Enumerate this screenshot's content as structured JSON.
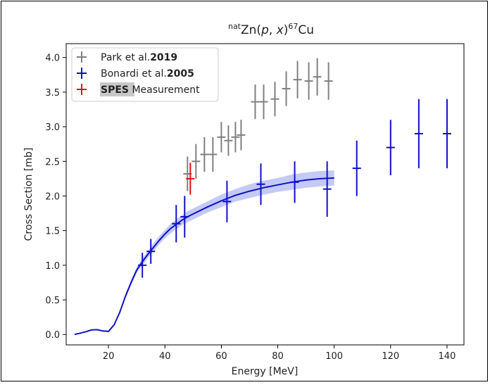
{
  "chart_data": {
    "type": "scatter",
    "title_parts": {
      "sup1": "nat",
      "main": "Zn(",
      "p": "p",
      "comma": ", ",
      "x": "x",
      "close": ")",
      "sup2": "67",
      "tail": "Cu"
    },
    "xlabel": "Energy [MeV]",
    "ylabel": "Cross Section [mb]",
    "xlim": [
      5,
      146
    ],
    "ylim": [
      -0.15,
      4.2
    ],
    "xticks": [
      20,
      40,
      60,
      80,
      100,
      120,
      140
    ],
    "yticks": [
      0.0,
      0.5,
      1.0,
      1.5,
      2.0,
      2.5,
      3.0,
      3.5,
      4.0
    ],
    "ytick_labels": [
      "0.0",
      "0.5",
      "1.0",
      "1.5",
      "2.0",
      "2.5",
      "3.0",
      "3.5",
      "4.0"
    ],
    "grid": false,
    "legend_placement": "top-left",
    "legend": [
      {
        "name": "Park et al.",
        "bold": "2019",
        "highlight": false,
        "color": "#808080"
      },
      {
        "name": "Bonardi et al.",
        "bold": "2005",
        "highlight": false,
        "color": "#1010c8"
      },
      {
        "name": " Measurement",
        "bold": "SPES",
        "highlight": true,
        "color": "#e01010"
      }
    ],
    "series": [
      {
        "name": "Park et al. 2019",
        "color": "#808080",
        "points": [
          {
            "x": 48.0,
            "y": 2.32,
            "err": 0.25
          },
          {
            "x": 51.0,
            "y": 2.5,
            "err": 0.25
          },
          {
            "x": 54.0,
            "y": 2.6,
            "err": 0.25
          },
          {
            "x": 57.0,
            "y": 2.6,
            "err": 0.25
          },
          {
            "x": 60.0,
            "y": 2.85,
            "err": 0.22
          },
          {
            "x": 62.5,
            "y": 2.8,
            "err": 0.22
          },
          {
            "x": 65.0,
            "y": 2.85,
            "err": 0.22
          },
          {
            "x": 67.0,
            "y": 2.88,
            "err": 0.22
          },
          {
            "x": 72.0,
            "y": 3.36,
            "err": 0.25
          },
          {
            "x": 75.0,
            "y": 3.36,
            "err": 0.25
          },
          {
            "x": 79.0,
            "y": 3.4,
            "err": 0.25
          },
          {
            "x": 83.0,
            "y": 3.55,
            "err": 0.25
          },
          {
            "x": 87.0,
            "y": 3.68,
            "err": 0.27
          },
          {
            "x": 91.0,
            "y": 3.66,
            "err": 0.27
          },
          {
            "x": 94.0,
            "y": 3.72,
            "err": 0.27
          },
          {
            "x": 98.0,
            "y": 3.66,
            "err": 0.27
          }
        ]
      },
      {
        "name": "Bonardi et al. 2005",
        "color": "#1010c8",
        "points": [
          {
            "x": 32.0,
            "y": 1.0,
            "err": 0.18
          },
          {
            "x": 35.0,
            "y": 1.2,
            "err": 0.18
          },
          {
            "x": 44.0,
            "y": 1.6,
            "err": 0.27
          },
          {
            "x": 47.0,
            "y": 1.7,
            "err": 0.3
          },
          {
            "x": 62.0,
            "y": 1.92,
            "err": 0.3
          },
          {
            "x": 74.0,
            "y": 2.17,
            "err": 0.3
          },
          {
            "x": 86.0,
            "y": 2.2,
            "err": 0.3
          },
          {
            "x": 97.5,
            "y": 2.1,
            "err": 0.4
          },
          {
            "x": 108.0,
            "y": 2.4,
            "err": 0.4
          },
          {
            "x": 120.0,
            "y": 2.7,
            "err": 0.4
          },
          {
            "x": 130.0,
            "y": 2.9,
            "err": 0.5
          },
          {
            "x": 140.0,
            "y": 2.9,
            "err": 0.5
          }
        ]
      },
      {
        "name": "SPES Measurement",
        "color": "#e01010",
        "points": [
          {
            "x": 49.0,
            "y": 2.25,
            "err": 0.23
          }
        ]
      }
    ],
    "fit_curve": {
      "color": "#1010c8",
      "band_color": "#aab4f0",
      "x": [
        8,
        10,
        12,
        14,
        16,
        18,
        20,
        22,
        24,
        26,
        28,
        30,
        32,
        34,
        36,
        38,
        40,
        42,
        44,
        46,
        48,
        50,
        55,
        60,
        65,
        70,
        75,
        80,
        85,
        90,
        95,
        100
      ],
      "y": [
        0.0,
        0.02,
        0.04,
        0.065,
        0.07,
        0.05,
        0.045,
        0.14,
        0.32,
        0.55,
        0.75,
        0.93,
        1.05,
        1.16,
        1.26,
        1.36,
        1.45,
        1.53,
        1.59,
        1.65,
        1.7,
        1.74,
        1.84,
        1.93,
        2.01,
        2.07,
        2.12,
        2.16,
        2.2,
        2.23,
        2.25,
        2.26
      ],
      "band": [
        0.0,
        0.0,
        0.0,
        0.0,
        0.0,
        0.0,
        0.0,
        0.01,
        0.02,
        0.03,
        0.04,
        0.04,
        0.05,
        0.05,
        0.06,
        0.06,
        0.06,
        0.07,
        0.07,
        0.07,
        0.08,
        0.08,
        0.08,
        0.09,
        0.09,
        0.1,
        0.1,
        0.1,
        0.11,
        0.11,
        0.11,
        0.11
      ]
    }
  }
}
